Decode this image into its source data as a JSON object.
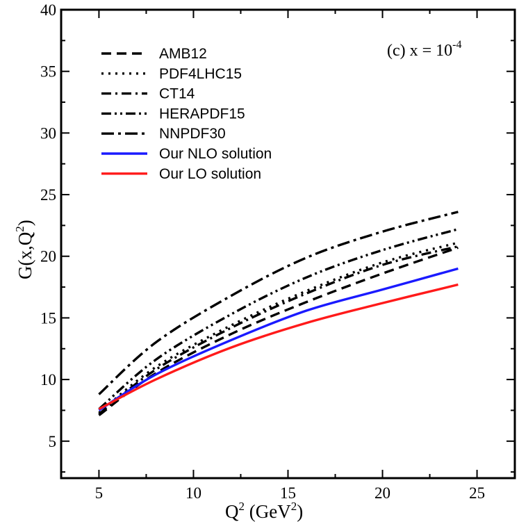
{
  "chart_data": {
    "type": "line",
    "annotation": {
      "text": "(c) x = 10",
      "exponent": "-4"
    },
    "xaxis": {
      "label": "Q",
      "label_sup": "2",
      "label_unit": " (GeV",
      "label_unit_sup": "2",
      "label_close": ")",
      "range": [
        3,
        27
      ],
      "ticks": [
        5,
        10,
        15,
        20,
        25
      ]
    },
    "yaxis": {
      "label": "G(x,Q",
      "label_sup": "2",
      "label_close": ")",
      "range": [
        2,
        40
      ],
      "ticks": [
        5,
        10,
        15,
        20,
        25,
        30,
        35,
        40
      ]
    },
    "legend_position": "top-left",
    "series": [
      {
        "name": "AMB12",
        "style": "dashed",
        "color": "#000000",
        "x": [
          5,
          8,
          12,
          16,
          20,
          24
        ],
        "values": [
          7.1,
          10.5,
          13.7,
          16.3,
          18.6,
          20.7
        ]
      },
      {
        "name": "PDF4LHC15",
        "style": "dotted",
        "color": "#000000",
        "x": [
          5,
          8,
          12,
          16,
          20,
          24
        ],
        "values": [
          7.3,
          11.0,
          14.4,
          17.2,
          19.5,
          21.1
        ]
      },
      {
        "name": "CT14",
        "style": "dash-dot",
        "color": "#000000",
        "x": [
          5,
          8,
          12,
          16,
          20,
          24
        ],
        "values": [
          7.2,
          10.8,
          14.2,
          17.0,
          19.3,
          20.8
        ]
      },
      {
        "name": "HERAPDF15",
        "style": "dash-dot-dot",
        "color": "#000000",
        "x": [
          5,
          8,
          12,
          16,
          20,
          24
        ],
        "values": [
          7.6,
          11.6,
          15.3,
          18.3,
          20.5,
          22.2
        ]
      },
      {
        "name": "NNPDF30",
        "style": "long-dash-dot",
        "color": "#000000",
        "x": [
          5,
          8,
          12,
          16,
          20,
          24
        ],
        "values": [
          8.8,
          13.0,
          16.8,
          19.9,
          22.0,
          23.6
        ]
      },
      {
        "name": "Our NLO solution",
        "style": "solid",
        "color": "#1a1aff",
        "x": [
          5,
          8,
          12,
          16,
          20,
          24
        ],
        "values": [
          7.5,
          10.4,
          13.2,
          15.6,
          17.3,
          19.0
        ]
      },
      {
        "name": "Our LO solution",
        "style": "solid",
        "color": "#ff1a1a",
        "x": [
          5,
          8,
          12,
          16,
          20,
          24
        ],
        "values": [
          7.6,
          10.0,
          12.6,
          14.6,
          16.2,
          17.7
        ]
      }
    ]
  }
}
